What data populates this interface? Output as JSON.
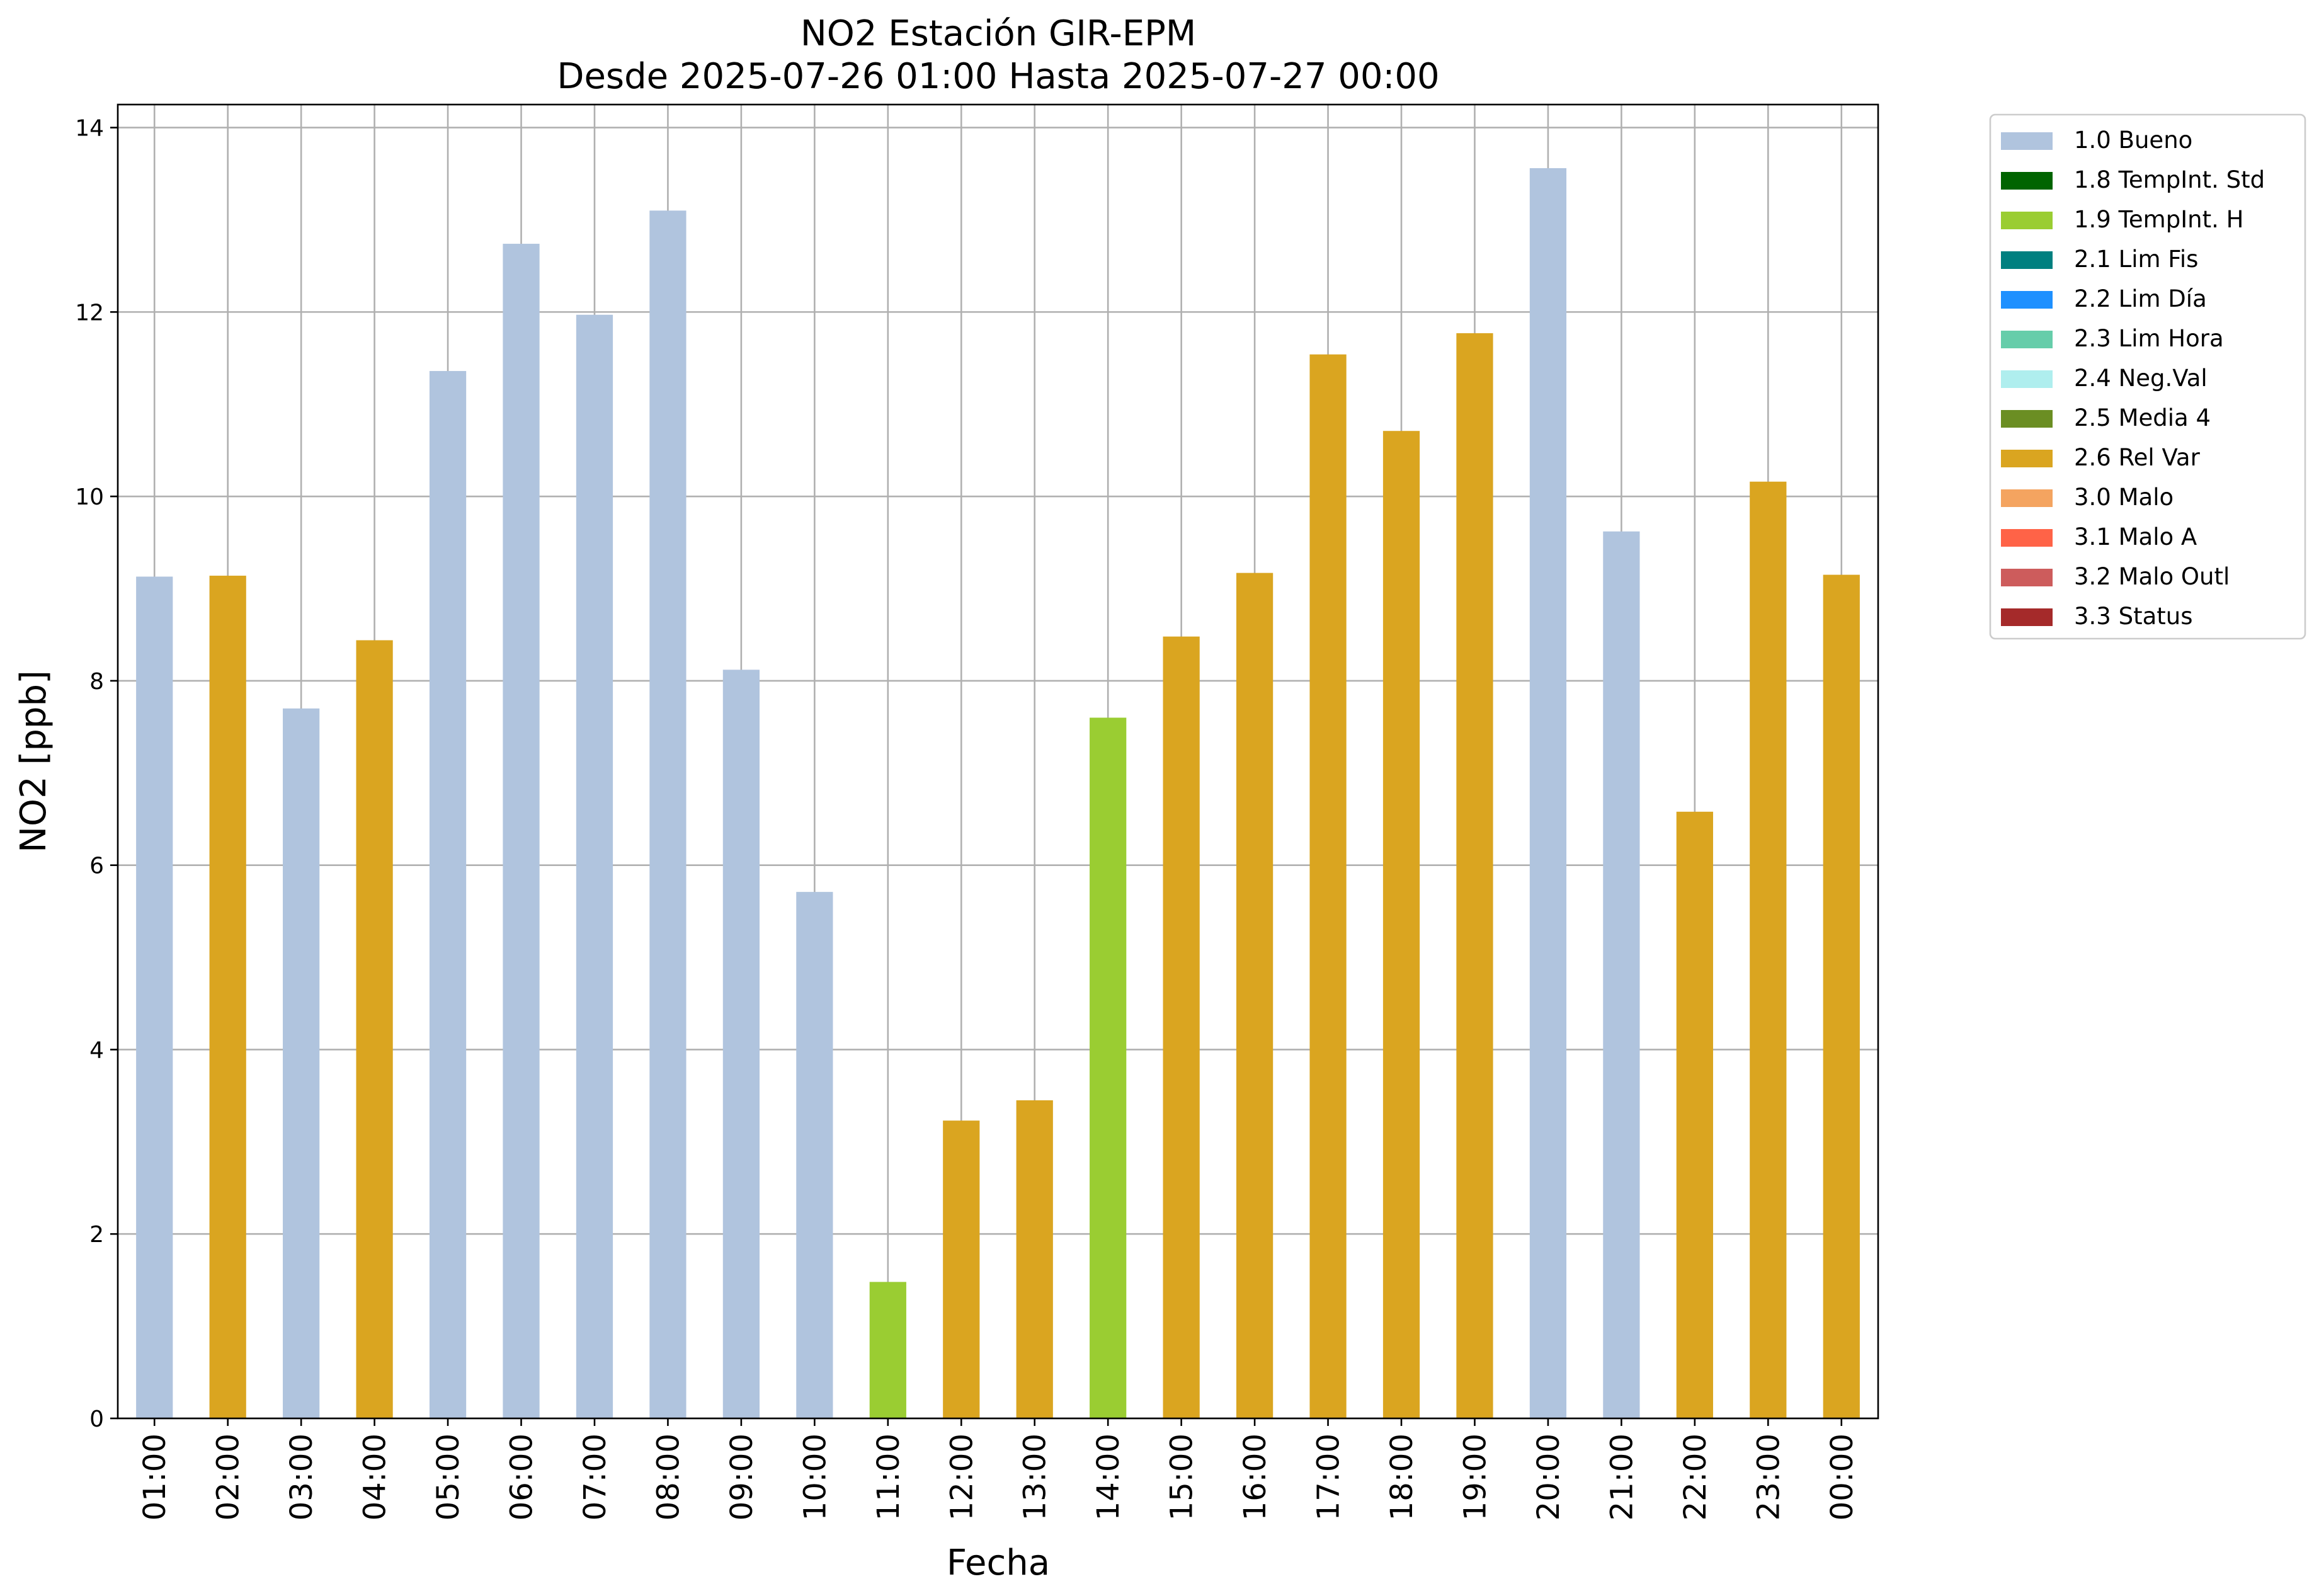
{
  "chart_data": {
    "type": "bar",
    "title": "NO2 Estación GIR-EPM",
    "subtitle": "Desde 2025-07-26 01:00 Hasta 2025-07-27 00:00",
    "xlabel": "Fecha",
    "ylabel": "NO2 [ppb]",
    "ylim": [
      0,
      14.25
    ],
    "yticks": [
      "0",
      "2",
      "4",
      "6",
      "8",
      "10",
      "12",
      "14"
    ],
    "grid": true,
    "legend_position": "outside-right-top",
    "categories": [
      "01:00",
      "02:00",
      "03:00",
      "04:00",
      "05:00",
      "06:00",
      "07:00",
      "08:00",
      "09:00",
      "10:00",
      "11:00",
      "12:00",
      "13:00",
      "14:00",
      "15:00",
      "16:00",
      "17:00",
      "18:00",
      "19:00",
      "20:00",
      "21:00",
      "22:00",
      "23:00",
      "00:00"
    ],
    "values": [
      9.13,
      9.14,
      7.7,
      8.44,
      11.36,
      12.74,
      11.97,
      13.1,
      8.12,
      5.71,
      1.48,
      3.23,
      3.45,
      7.6,
      8.48,
      9.17,
      11.54,
      10.71,
      11.77,
      13.56,
      9.62,
      6.58,
      10.16,
      9.15
    ],
    "flags": [
      "1.0 Bueno",
      "2.6 Rel Var",
      "1.0 Bueno",
      "2.6 Rel Var",
      "1.0 Bueno",
      "1.0 Bueno",
      "1.0 Bueno",
      "1.0 Bueno",
      "1.0 Bueno",
      "1.0 Bueno",
      "1.9 TempInt. H",
      "2.6 Rel Var",
      "2.6 Rel Var",
      "1.9 TempInt. H",
      "2.6 Rel Var",
      "2.6 Rel Var",
      "2.6 Rel Var",
      "2.6 Rel Var",
      "2.6 Rel Var",
      "1.0 Bueno",
      "1.0 Bueno",
      "2.6 Rel Var",
      "2.6 Rel Var",
      "2.6 Rel Var"
    ],
    "legend": [
      {
        "name": "1.0 Bueno",
        "color": "#b0c4de"
      },
      {
        "name": "1.8 TempInt. Std",
        "color": "#006400"
      },
      {
        "name": "1.9 TempInt. H",
        "color": "#9acd32"
      },
      {
        "name": "2.1 Lim Fis",
        "color": "#008080"
      },
      {
        "name": "2.2 Lim Día",
        "color": "#1e90ff"
      },
      {
        "name": "2.3 Lim Hora",
        "color": "#66cdaa"
      },
      {
        "name": "2.4 Neg.Val",
        "color": "#afeeee"
      },
      {
        "name": "2.5 Media 4",
        "color": "#6b8e23"
      },
      {
        "name": "2.6 Rel Var",
        "color": "#daa520"
      },
      {
        "name": "3.0 Malo",
        "color": "#f4a460"
      },
      {
        "name": "3.1 Malo A",
        "color": "#ff6347"
      },
      {
        "name": "3.2 Malo Outl",
        "color": "#cd5c5c"
      },
      {
        "name": "3.3 Status",
        "color": "#a52a2a"
      }
    ]
  }
}
